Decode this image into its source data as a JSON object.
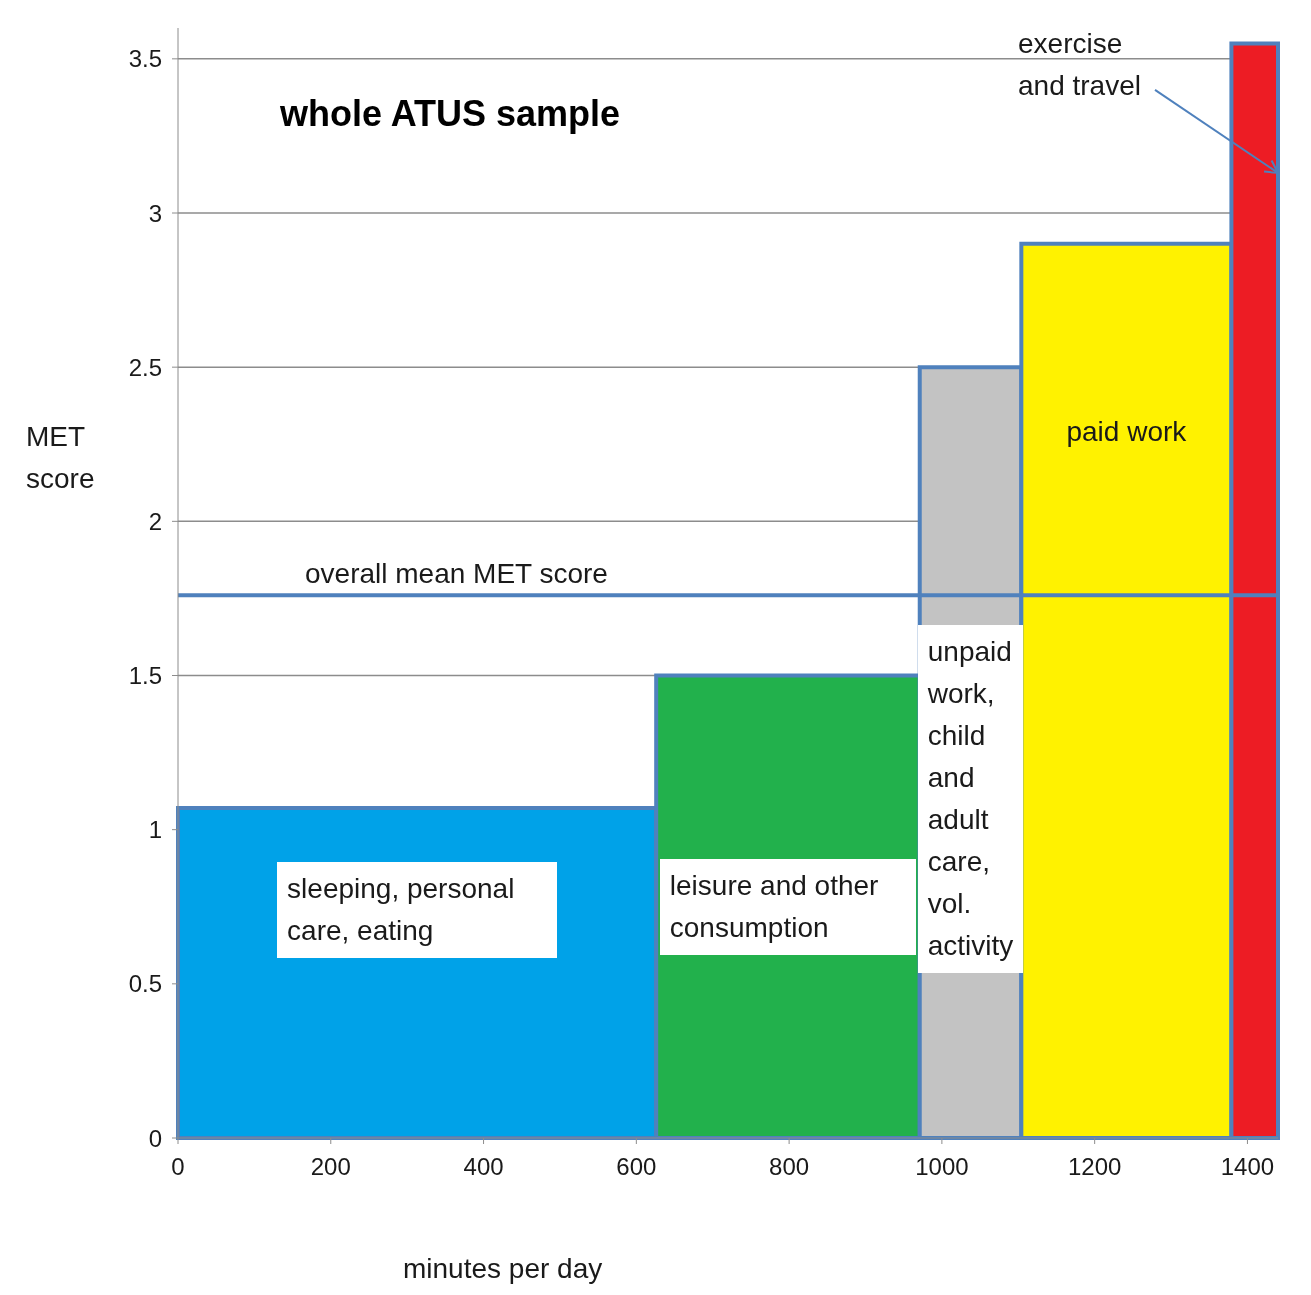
{
  "chart_data": {
    "type": "histogram",
    "title": "whole ATUS sample",
    "xlabel": "minutes per day",
    "ylabel": "MET score",
    "bins": [
      0,
      626,
      971,
      1104,
      1379,
      1440
    ],
    "values": [
      1.07,
      1.5,
      2.5,
      2.9,
      3.55
    ],
    "colors": [
      "#00a2e8",
      "#22b14c",
      "#c3c3c3",
      "#fff200",
      "#ed1c24"
    ],
    "xlim": [
      0,
      1440
    ],
    "xticks": [
      0,
      200,
      400,
      600,
      800,
      1000,
      1200,
      1400
    ],
    "ylim": [
      0,
      3.6
    ],
    "yticks": [
      0,
      0.5,
      1,
      1.5,
      2,
      2.5,
      3,
      3.5
    ],
    "grid": "y",
    "ref_lines": [
      {
        "axis": "y",
        "value": 1.76,
        "label": "overall mean MET score",
        "color": "#4f81bd"
      }
    ],
    "annotations": [
      "sleeping, personal care, eating",
      "leisure and other consumption",
      "unpaid work, child and adult care, vol. activity",
      "paid work",
      {
        "text": "exercise and travel",
        "x": 1440,
        "y": 3.13
      }
    ]
  }
}
